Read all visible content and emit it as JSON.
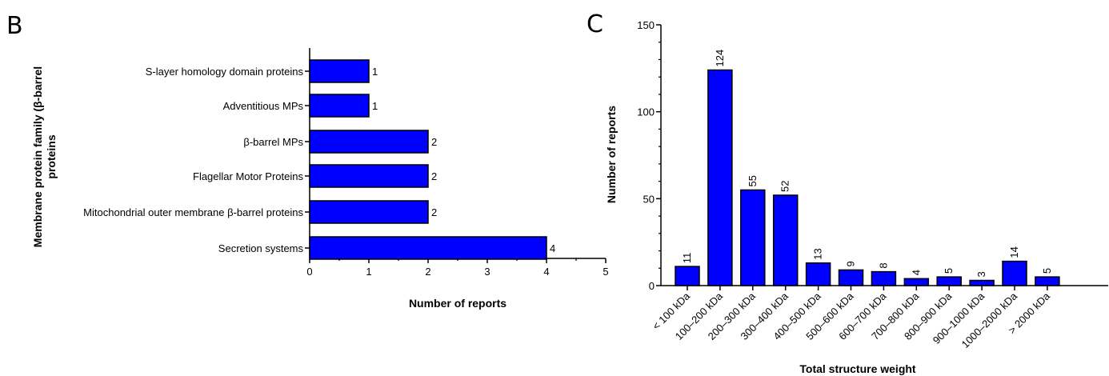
{
  "panels": {
    "left_letter": "B",
    "right_letter": "C"
  },
  "chart_data": [
    {
      "type": "bar",
      "orientation": "horizontal",
      "categories": [
        "S-layer homology domain proteins",
        "Adventitious MPs",
        "β-barrel MPs",
        "Flagellar Motor Proteins",
        "Mitochondrial outer membrane β-barrel proteins",
        "Secretion systems"
      ],
      "values": [
        1,
        1,
        2,
        2,
        2,
        4
      ],
      "data_labels": [
        "1",
        "1",
        "2",
        "2",
        "2",
        "4"
      ],
      "xlabel": "Number of reports",
      "ylabel_lines": [
        "Membrane protein family (β-barrel",
        "proteins"
      ],
      "xlim": [
        0,
        5
      ],
      "xticks": [
        "0",
        "1",
        "2",
        "3",
        "4",
        "5"
      ],
      "bar_color": "#0000ff",
      "grid": false
    },
    {
      "type": "bar",
      "orientation": "vertical",
      "categories": [
        "< 100 kDa",
        "100–200 kDa",
        "200–300 kDa",
        "300–400 kDa",
        "400–500 kDa",
        "500–600 kDa",
        "600–700 kDa",
        "700–800 kDa",
        "800–900 kDa",
        "900–1000 kDa",
        "1000–2000 kDa",
        "> 2000 kDa"
      ],
      "values": [
        11,
        124,
        55,
        52,
        13,
        9,
        8,
        4,
        5,
        3,
        14,
        5
      ],
      "data_labels": [
        "11",
        "124",
        "55",
        "52",
        "13",
        "9",
        "8",
        "4",
        "5",
        "3",
        "14",
        "5"
      ],
      "xlabel": "Total structure weight",
      "ylabel": "Number of reports",
      "ylim": [
        0,
        150
      ],
      "yticks": [
        "0",
        "50",
        "100",
        "150"
      ],
      "bar_color": "#0000ff",
      "grid": false
    }
  ]
}
